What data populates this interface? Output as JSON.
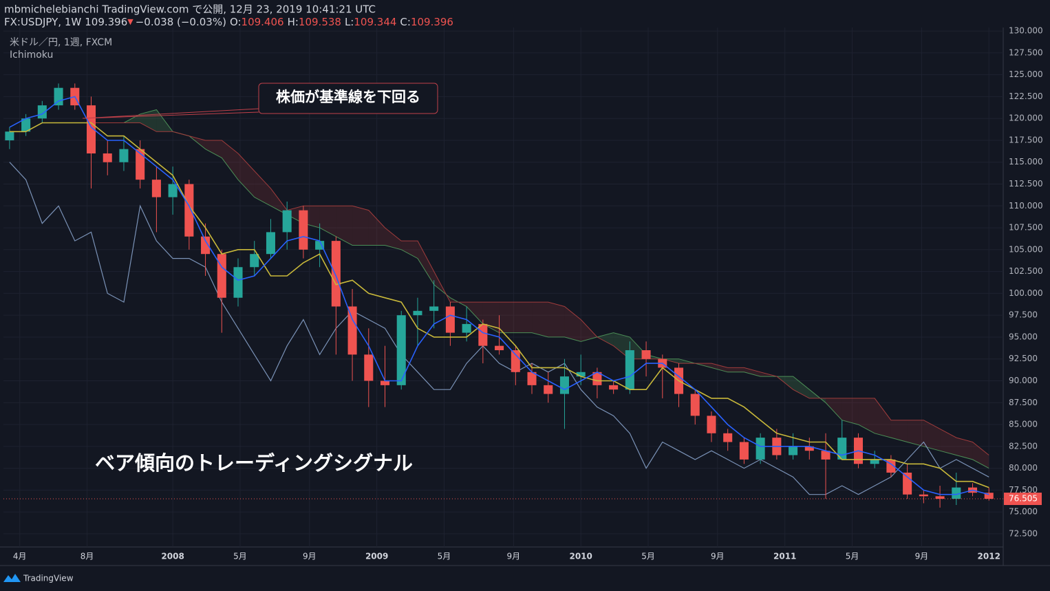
{
  "header": {
    "published": "mbmichelebianchi TradingView.com で公開, 12月 23, 2019 10:41:21 UTC",
    "symbol": "FX:USDJPY, 1W",
    "price": "109.396",
    "change": "−0.038 (−0.03%)",
    "ohlc": [
      {
        "label": "O:",
        "value": "109.406"
      },
      {
        "label": "H:",
        "value": "109.538"
      },
      {
        "label": "L:",
        "value": "109.344"
      },
      {
        "label": "C:",
        "value": "109.396"
      }
    ]
  },
  "footer": {
    "brand": "TradingView"
  },
  "chart_data": {
    "type": "candlestick",
    "pair": "米ドル／円, 1週, FXCM",
    "indicator": "Ichimoku",
    "annotations": [
      "株価が基準線を下回る",
      "ベア傾向のトレーディングシグナル"
    ],
    "last_price": 76.505,
    "up_color": "#26a69a",
    "down_color": "#ef5350",
    "xlim": [
      2007.17,
      2012.07
    ],
    "ylim": [
      71,
      130.4
    ],
    "xticks": [
      {
        "value": 2007.25,
        "label": "4月"
      },
      {
        "value": 2007.58,
        "label": "8月"
      },
      2008,
      {
        "value": 2008.33,
        "label": "5月"
      },
      {
        "value": 2008.67,
        "label": "9月"
      },
      2009,
      {
        "value": 2009.33,
        "label": "5月"
      },
      {
        "value": 2009.67,
        "label": "9月"
      },
      2010,
      {
        "value": 2010.33,
        "label": "5月"
      },
      {
        "value": 2010.67,
        "label": "9月"
      },
      2011,
      {
        "value": 2011.33,
        "label": "5月"
      },
      {
        "value": 2011.67,
        "label": "9月"
      },
      2012
    ],
    "yticks": [
      {
        "value": 72.5,
        "label": "72.500"
      },
      {
        "value": 75,
        "label": "75.000"
      },
      {
        "value": 77.5,
        "label": "77.500"
      },
      {
        "value": 80,
        "label": "80.000"
      },
      {
        "value": 82.5,
        "label": "82.500"
      },
      {
        "value": 85,
        "label": "85.000"
      },
      {
        "value": 87.5,
        "label": "87.500"
      },
      {
        "value": 90,
        "label": "90.000"
      },
      {
        "value": 92.5,
        "label": "92.500"
      },
      {
        "value": 95,
        "label": "95.000"
      },
      {
        "value": 97.5,
        "label": "97.500"
      },
      {
        "value": 100,
        "label": "100.000"
      },
      {
        "value": 102.5,
        "label": "102.500"
      },
      {
        "value": 105,
        "label": "105.000"
      },
      {
        "value": 107.5,
        "label": "107.500"
      },
      {
        "value": 110,
        "label": "110.000"
      },
      {
        "value": 112.5,
        "label": "112.500"
      },
      {
        "value": 115,
        "label": "115.000"
      },
      {
        "value": 117.5,
        "label": "117.500"
      },
      {
        "value": 120,
        "label": "120.000"
      },
      {
        "value": 122.5,
        "label": "122.500"
      },
      {
        "value": 125,
        "label": "125.000"
      },
      {
        "value": 127.5,
        "label": "127.500"
      },
      {
        "value": 130,
        "label": "130.000"
      }
    ],
    "x": [
      2007.2,
      2007.28,
      2007.36,
      2007.44,
      2007.52,
      2007.6,
      2007.68,
      2007.76,
      2007.84,
      2007.92,
      2008,
      2008.08,
      2008.16,
      2008.24,
      2008.32,
      2008.4,
      2008.48,
      2008.56,
      2008.64,
      2008.72,
      2008.8,
      2008.88,
      2008.96,
      2009.04,
      2009.12,
      2009.2,
      2009.28,
      2009.36,
      2009.44,
      2009.52,
      2009.6,
      2009.68,
      2009.76,
      2009.84,
      2009.92,
      2010,
      2010.08,
      2010.16,
      2010.24,
      2010.32,
      2010.4,
      2010.48,
      2010.56,
      2010.64,
      2010.72,
      2010.8,
      2010.88,
      2010.96,
      2011.04,
      2011.12,
      2011.2,
      2011.28,
      2011.36,
      2011.44,
      2011.52,
      2011.6,
      2011.68,
      2011.76,
      2011.84,
      2011.92,
      2012
    ],
    "open": [
      117.5,
      118.5,
      120,
      121.5,
      123.5,
      121.5,
      116,
      115,
      116.5,
      113,
      111,
      112.5,
      106.5,
      104.5,
      99.5,
      103,
      104.5,
      107,
      109.5,
      105,
      106,
      98.5,
      93,
      90,
      89.5,
      97.5,
      98,
      98.5,
      95.5,
      96.5,
      94,
      93.5,
      91,
      89.5,
      88.5,
      90.5,
      91,
      89.5,
      89,
      93.5,
      92.5,
      91.5,
      88.5,
      86,
      84,
      83,
      81,
      83.5,
      81.5,
      82.5,
      82,
      81,
      83.5,
      80.5,
      81,
      79.5,
      77,
      76.8,
      76.5,
      77.8,
      77.2
    ],
    "high": [
      119,
      120.5,
      122,
      124,
      124,
      122.5,
      117.5,
      118,
      117.5,
      114.5,
      114.5,
      113,
      108,
      105,
      104,
      106,
      108.5,
      110.5,
      110,
      108,
      106.5,
      100.5,
      96,
      94,
      98,
      99.5,
      101.5,
      99,
      98.5,
      97,
      97.5,
      94,
      92,
      91,
      92.5,
      93,
      91.5,
      90,
      94.5,
      94.5,
      93,
      92,
      89,
      86.5,
      84.5,
      83.5,
      84,
      84.5,
      84,
      83.5,
      84,
      85.5,
      84,
      82,
      81.5,
      80.5,
      77.5,
      78,
      79.5,
      78.3,
      77.8
    ],
    "low": [
      116.5,
      118,
      119.5,
      121,
      121,
      112,
      113.5,
      114,
      112,
      107,
      109,
      105,
      102,
      95.5,
      98.5,
      102,
      104,
      105,
      104,
      103,
      93,
      90,
      87,
      87,
      89,
      94,
      96,
      94,
      94.5,
      92,
      93,
      89.5,
      88.5,
      87.5,
      84.5,
      89.5,
      88,
      88.5,
      88.5,
      90.5,
      88,
      87,
      85,
      83,
      82,
      80.5,
      80.5,
      81,
      81,
      81,
      76.5,
      81,
      80,
      80,
      79,
      76.5,
      76,
      75.5,
      75.8,
      76.8,
      76.3
    ],
    "close": [
      118.5,
      120,
      121.5,
      123.5,
      121.5,
      116,
      115,
      116.5,
      113,
      111,
      112.5,
      106.5,
      104.5,
      99.5,
      103,
      104.5,
      107,
      109.5,
      105,
      106,
      98.5,
      93,
      90,
      89.5,
      97.5,
      98,
      98.5,
      95.5,
      96.5,
      94,
      93.5,
      91,
      89.5,
      88.5,
      90.5,
      91,
      89.5,
      89,
      93.5,
      92.5,
      91.5,
      88.5,
      86,
      84,
      83,
      81,
      83.5,
      81.5,
      82.5,
      82,
      81,
      83.5,
      80.5,
      81,
      79.5,
      77,
      76.8,
      76.5,
      77.8,
      77.2,
      76.5
    ],
    "tenkan": {
      "color": "#2962ff",
      "values": [
        119,
        120,
        120.5,
        122,
        122.5,
        119,
        117.5,
        117.5,
        116,
        114.5,
        113,
        110,
        106,
        103,
        101.5,
        102,
        104,
        106,
        106.5,
        106,
        102,
        97,
        94,
        90,
        90,
        94,
        96.5,
        97.5,
        97,
        95.5,
        95,
        93,
        91,
        90,
        89,
        90,
        91,
        90,
        90.5,
        92,
        92,
        90.5,
        89,
        87,
        85,
        83.5,
        82.5,
        82.5,
        82.5,
        82.5,
        82,
        81.5,
        82,
        81.5,
        80.5,
        79,
        77.5,
        77,
        77,
        77.5,
        77
      ]
    },
    "kijun": {
      "color": "#c9b93a",
      "values": [
        118.5,
        118.5,
        119.5,
        119.5,
        119.5,
        119.5,
        118,
        118,
        116.5,
        115,
        113.5,
        110,
        107.5,
        104.5,
        105,
        105,
        102,
        102,
        103.5,
        104.5,
        101,
        101.5,
        100,
        99.5,
        99,
        96,
        95,
        95,
        95,
        96.5,
        96,
        94,
        91.5,
        91.5,
        91.5,
        90.5,
        90,
        90,
        89,
        89,
        91.5,
        90,
        89,
        88,
        88,
        87,
        85.5,
        84,
        83.5,
        83,
        83,
        81,
        81,
        81,
        81,
        80.5,
        80.5,
        80,
        78.5,
        78.5,
        77.8
      ]
    },
    "chikou": {
      "color": "#7b93b8",
      "values": [
        115,
        113,
        108,
        110,
        106,
        107,
        100,
        99,
        110,
        106,
        104,
        104,
        103,
        99,
        96,
        93,
        90,
        94,
        97,
        93,
        96,
        98,
        97,
        96,
        93,
        91,
        89,
        89,
        92,
        94,
        92,
        91,
        92,
        91,
        92,
        89,
        87,
        86,
        84,
        80,
        83,
        82,
        81,
        82,
        81,
        80,
        81,
        80,
        79,
        77,
        77,
        78,
        77,
        78,
        79,
        81,
        83,
        80,
        81,
        80,
        79
      ]
    },
    "span_a": {
      "color": "#4c8f57",
      "values": [
        null,
        null,
        null,
        null,
        null,
        119.5,
        119.5,
        119.5,
        120.5,
        121,
        118.5,
        118,
        116.5,
        115.5,
        113,
        111,
        110,
        109,
        108,
        107.5,
        106.5,
        105.5,
        105.5,
        105.5,
        105,
        104,
        101,
        99.5,
        98.5,
        96.5,
        95.5,
        95.5,
        95.5,
        95,
        95,
        94.5,
        95,
        95.5,
        95,
        93,
        92.5,
        92.5,
        92,
        91.5,
        91,
        91,
        90.5,
        90.5,
        90.5,
        89,
        87.5,
        85.5,
        85,
        84,
        83.5,
        83,
        82.5,
        82,
        81.5,
        81,
        80
      ]
    },
    "span_b": {
      "color": "#a03c3c",
      "values": [
        null,
        null,
        null,
        null,
        null,
        119.5,
        119.5,
        119.5,
        119.5,
        118.5,
        118.5,
        118,
        117.5,
        117.5,
        116,
        114,
        112,
        109.5,
        110,
        110,
        110,
        110,
        109.5,
        107.5,
        106,
        106,
        102.5,
        99,
        99,
        99,
        99,
        99,
        99,
        99,
        98.5,
        97,
        95,
        94,
        92.5,
        92.5,
        92.5,
        92,
        92,
        92,
        91.5,
        91.5,
        91,
        90.5,
        89,
        88,
        88,
        88,
        88,
        88,
        85.5,
        85.5,
        85.5,
        84.5,
        83.5,
        83,
        81.5
      ]
    }
  }
}
